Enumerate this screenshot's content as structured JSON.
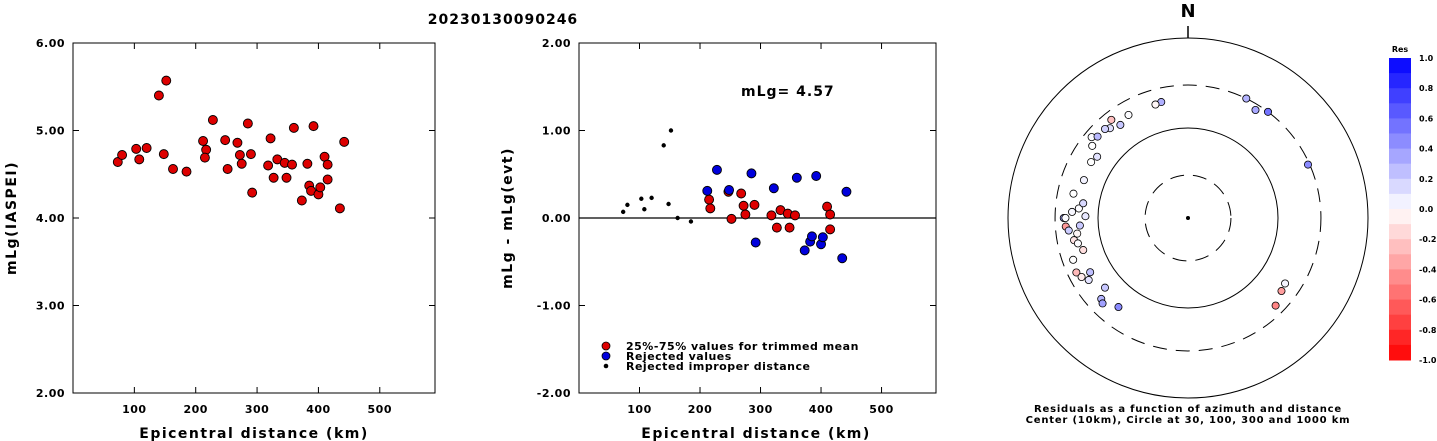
{
  "chart_data": [
    {
      "type": "scatter",
      "title": "20230130090246",
      "xlabel": "Epicentral distance (km)",
      "ylabel": "mLg(IASPEI)",
      "xlim": [
        0,
        590
      ],
      "ylim": [
        2.0,
        6.0
      ],
      "x_ticks": [
        "100",
        "200",
        "300",
        "400",
        "500"
      ],
      "y_ticks": [
        "2.00",
        "3.00",
        "4.00",
        "5.00",
        "6.00"
      ],
      "color": "#dd0000",
      "points": [
        [
          73,
          4.64
        ],
        [
          80,
          4.72
        ],
        [
          103,
          4.79
        ],
        [
          108,
          4.67
        ],
        [
          120,
          4.8
        ],
        [
          140,
          5.4
        ],
        [
          148,
          4.73
        ],
        [
          152,
          5.57
        ],
        [
          163,
          4.56
        ],
        [
          185,
          4.53
        ],
        [
          212,
          4.88
        ],
        [
          217,
          4.78
        ],
        [
          215,
          4.69
        ],
        [
          228,
          5.12
        ],
        [
          248,
          4.89
        ],
        [
          252,
          4.56
        ],
        [
          268,
          4.86
        ],
        [
          272,
          4.72
        ],
        [
          275,
          4.62
        ],
        [
          285,
          5.08
        ],
        [
          290,
          4.73
        ],
        [
          292,
          4.29
        ],
        [
          318,
          4.6
        ],
        [
          322,
          4.91
        ],
        [
          327,
          4.46
        ],
        [
          333,
          4.67
        ],
        [
          345,
          4.63
        ],
        [
          348,
          4.46
        ],
        [
          357,
          4.61
        ],
        [
          360,
          5.03
        ],
        [
          373,
          4.2
        ],
        [
          382,
          4.62
        ],
        [
          385,
          4.37
        ],
        [
          388,
          4.31
        ],
        [
          392,
          5.05
        ],
        [
          400,
          4.27
        ],
        [
          403,
          4.35
        ],
        [
          410,
          4.7
        ],
        [
          415,
          4.61
        ],
        [
          415,
          4.44
        ],
        [
          435,
          4.11
        ],
        [
          442,
          4.87
        ]
      ]
    },
    {
      "type": "scatter",
      "title": "",
      "xlabel": "Epicentral distance (km)",
      "ylabel": "mLg - mLg(evt)",
      "xlim": [
        0,
        590
      ],
      "ylim": [
        -2.0,
        2.0
      ],
      "x_ticks": [
        "100",
        "200",
        "300",
        "400",
        "500"
      ],
      "y_ticks": [
        "-2.00",
        "-1.00",
        "0.00",
        "1.00",
        "2.00"
      ],
      "annotation": "mLg= 4.57",
      "legend": [
        {
          "label": "25%-75% values for trimmed mean",
          "color": "#dd0000"
        },
        {
          "label": "Rejected values",
          "color": "#0000dd"
        },
        {
          "label": "Rejected improper distance",
          "color": "#000000"
        }
      ],
      "series": [
        {
          "name": "25%-75% values for trimmed mean",
          "color": "#dd0000",
          "points": [
            [
              215,
              0.21
            ],
            [
              217,
              0.11
            ],
            [
              247,
              0.3
            ],
            [
              252,
              -0.01
            ],
            [
              268,
              0.28
            ],
            [
              272,
              0.14
            ],
            [
              275,
              0.04
            ],
            [
              290,
              0.15
            ],
            [
              318,
              0.03
            ],
            [
              327,
              -0.11
            ],
            [
              333,
              0.09
            ],
            [
              345,
              0.05
            ],
            [
              348,
              -0.11
            ],
            [
              357,
              0.03
            ],
            [
              410,
              0.13
            ],
            [
              415,
              0.04
            ],
            [
              415,
              -0.13
            ]
          ]
        },
        {
          "name": "Rejected values",
          "color": "#0000dd",
          "points": [
            [
              212,
              0.31
            ],
            [
              228,
              0.55
            ],
            [
              248,
              0.32
            ],
            [
              285,
              0.51
            ],
            [
              292,
              -0.28
            ],
            [
              322,
              0.34
            ],
            [
              360,
              0.46
            ],
            [
              373,
              -0.37
            ],
            [
              382,
              -0.27
            ],
            [
              385,
              -0.21
            ],
            [
              392,
              0.48
            ],
            [
              400,
              -0.3
            ],
            [
              403,
              -0.22
            ],
            [
              435,
              -0.46
            ],
            [
              442,
              0.3
            ]
          ]
        },
        {
          "name": "Rejected improper distance",
          "color": "#000000",
          "points": [
            [
              73,
              0.07
            ],
            [
              80,
              0.15
            ],
            [
              103,
              0.22
            ],
            [
              108,
              0.1
            ],
            [
              120,
              0.23
            ],
            [
              140,
              0.83
            ],
            [
              148,
              0.16
            ],
            [
              152,
              1.0
            ],
            [
              163,
              0.0
            ],
            [
              185,
              -0.04
            ]
          ]
        }
      ]
    },
    {
      "type": "scatter",
      "title": "",
      "north_label": "N",
      "caption_line1": "Residuals as a function of azimuth and distance",
      "caption_line2": "Center (10km), Circle at 30, 100, 300 and 1000 km",
      "colorbar_title": "Res",
      "colorbar_ticks": [
        "1.0",
        "0.8",
        "0.6",
        "0.4",
        "0.2",
        "0.0",
        "-0.2",
        "-0.4",
        "-0.6",
        "-0.8",
        "-1.0"
      ],
      "rings_km": [
        30,
        100,
        300,
        1000
      ],
      "ring_styles": [
        "dashed",
        "solid",
        "dashed",
        "solid"
      ],
      "points_az_dist_res": [
        [
          347,
          210,
          0.31
        ],
        [
          330,
          210,
          0.01
        ],
        [
          319,
          210,
          0.12
        ],
        [
          324,
          190,
          0.22
        ],
        [
          344,
          205,
          -0.03
        ],
        [
          26,
          300,
          0.3
        ],
        [
          37,
          300,
          0.55
        ],
        [
          32,
          260,
          0.34
        ],
        [
          310,
          250,
          0.02
        ],
        [
          317,
          225,
          0.18
        ],
        [
          312,
          225,
          0.28
        ],
        [
          307,
          215,
          0.0
        ],
        [
          300,
          175,
          0.0
        ],
        [
          290,
          170,
          0.05
        ],
        [
          282,
          200,
          0.0
        ],
        [
          270,
          240,
          0.36
        ],
        [
          266,
          230,
          -0.4
        ],
        [
          264,
          215,
          0.2
        ],
        [
          270,
          230,
          0.01
        ],
        [
          273,
          195,
          0.03
        ],
        [
          275,
          165,
          0.01
        ],
        [
          278,
          150,
          0.15
        ],
        [
          271,
          138,
          0.09
        ],
        [
          266,
          160,
          0.21
        ],
        [
          262,
          175,
          -0.04
        ],
        [
          259,
          195,
          -0.11
        ],
        [
          257,
          180,
          0.01
        ],
        [
          253,
          165,
          -0.13
        ],
        [
          250,
          228,
          0.0
        ],
        [
          241,
          175,
          0.25
        ],
        [
          244,
          240,
          -0.27
        ],
        [
          238,
          200,
          0.11
        ],
        [
          227,
          208,
          0.29
        ],
        [
          230,
          160,
          0.22
        ],
        [
          225,
          220,
          0.37
        ],
        [
          218,
          180,
          0.46
        ],
        [
          241,
          225,
          -0.08
        ],
        [
          135,
          238,
          -0.48
        ],
        [
          128,
          208,
          -0.38
        ],
        [
          124,
          200,
          0.04
        ],
        [
          66,
          288,
          0.46
        ],
        [
          322,
          242,
          -0.25
        ],
        [
          304,
          165,
          0.11
        ]
      ]
    }
  ]
}
